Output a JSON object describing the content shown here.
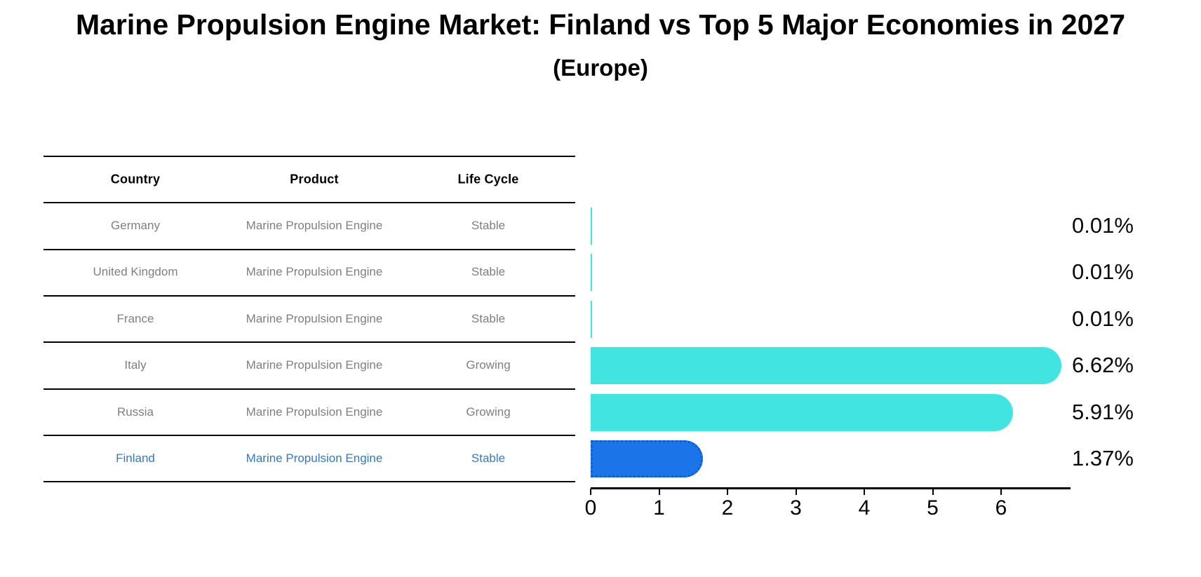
{
  "title": "Marine Propulsion Engine Market: Finland vs Top 5 Major Economies in 2027",
  "subtitle": "(Europe)",
  "table": {
    "headers": [
      "Country",
      "Product",
      "Life Cycle"
    ],
    "rows": [
      {
        "country": "Germany",
        "product": "Marine Propulsion Engine",
        "life_cycle": "Stable",
        "highlight": false
      },
      {
        "country": "United Kingdom",
        "product": "Marine Propulsion Engine",
        "life_cycle": "Stable",
        "highlight": false
      },
      {
        "country": "France",
        "product": "Marine Propulsion Engine",
        "life_cycle": "Stable",
        "highlight": false
      },
      {
        "country": "Italy",
        "product": "Marine Propulsion Engine",
        "life_cycle": "Growing",
        "highlight": false
      },
      {
        "country": "Russia",
        "product": "Marine Propulsion Engine",
        "life_cycle": "Growing",
        "highlight": false
      },
      {
        "country": "Finland",
        "product": "Marine Propulsion Engine",
        "life_cycle": "Stable",
        "highlight": true
      }
    ]
  },
  "chart_data": {
    "type": "bar",
    "orientation": "horizontal",
    "title": "Marine Propulsion Engine Market: Finland vs Top 5 Major Economies in 2027 (Europe)",
    "categories": [
      "Germany",
      "United Kingdom",
      "France",
      "Italy",
      "Russia",
      "Finland"
    ],
    "values": [
      0.01,
      0.01,
      0.01,
      6.62,
      5.91,
      1.37
    ],
    "value_labels": [
      "0.01%",
      "0.01%",
      "0.01%",
      "6.62%",
      "5.91%",
      "1.37%"
    ],
    "x_ticks": [
      "0",
      "1",
      "2",
      "3",
      "4",
      "5",
      "6"
    ],
    "xlim": [
      0,
      7
    ],
    "grid": false,
    "legend": false,
    "default_bar_color": "#41E4E0",
    "highlight_bar_color": "#1B74E8",
    "highlight_category": "Finland"
  },
  "colors": {
    "background": "#ffffff",
    "table_rule": "#000000",
    "table_header_text": "#000000",
    "table_body_text": "#7f7f7f",
    "highlight_text": "#3779be",
    "axis": "#000000",
    "value_label_text": "#0a0a0a"
  }
}
